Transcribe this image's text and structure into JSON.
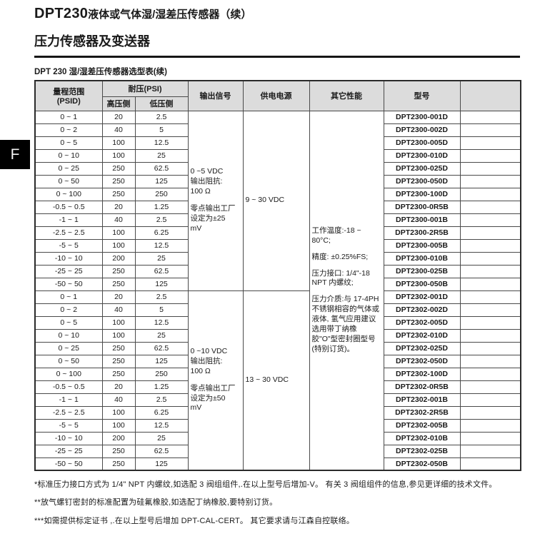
{
  "page": {
    "title_model": "DPT230",
    "title_rest": "液体或气体湿/湿差压传感器（续）",
    "subtitle": "压力传感器及变送器",
    "section_tab": "F",
    "table_caption": "DPT 230 湿/湿差压传感器选型表(续)"
  },
  "colors": {
    "header_bg": "#dcdcdc",
    "tab_bg": "#000000",
    "border": "#4a4a4a"
  },
  "table": {
    "headers": {
      "range": "量程范围",
      "range_sub": "(PSID)",
      "pressure": "耐压(PSI)",
      "high_side": "高压侧",
      "low_side": "低压侧",
      "output": "输出信号",
      "power": "供电电源",
      "other": "其它性能",
      "model": "型号",
      "blank": ""
    },
    "other_performance": [
      "工作温度:-18 ~ 80°C;",
      "精度: ±0.25%FS;",
      "压力接口: 1/4\"-18 NPT 内螺纹;",
      "压力介质:与 17-4PH 不锈钢相容的气体或液体, 氢气应用建议选用带丁纳橡胶\"O\"型密封圈型号(特别订货)。"
    ],
    "blocks": [
      {
        "output_signal": [
          "0 ~5 VDC\n输出阻抗:\n100 Ω",
          "零点输出工厂\n设定为±25\nmV"
        ],
        "power": "9 ~ 30 VDC",
        "rows": [
          {
            "range": "0 ~ 1",
            "high": "20",
            "low": "2.5",
            "model": "DPT2300-001D"
          },
          {
            "range": "0 ~ 2",
            "high": "40",
            "low": "5",
            "model": "DPT2300-002D"
          },
          {
            "range": "0 ~ 5",
            "high": "100",
            "low": "12.5",
            "model": "DPT2300-005D"
          },
          {
            "range": "0 ~ 10",
            "high": "100",
            "low": "25",
            "model": "DPT2300-010D"
          },
          {
            "range": "0 ~ 25",
            "high": "250",
            "low": "62.5",
            "model": "DPT2300-025D"
          },
          {
            "range": "0 ~ 50",
            "high": "250",
            "low": "125",
            "model": "DPT2300-050D"
          },
          {
            "range": "0 ~ 100",
            "high": "250",
            "low": "250",
            "model": "DPT2300-100D"
          },
          {
            "range": "-0.5 ~ 0.5",
            "high": "20",
            "low": "1.25",
            "model": "DPT2300-0R5B"
          },
          {
            "range": "-1 ~ 1",
            "high": "40",
            "low": "2.5",
            "model": "DPT2300-001B"
          },
          {
            "range": "-2.5 ~ 2.5",
            "high": "100",
            "low": "6.25",
            "model": "DPT2300-2R5B"
          },
          {
            "range": "-5 ~ 5",
            "high": "100",
            "low": "12.5",
            "model": "DPT2300-005B"
          },
          {
            "range": "-10 ~ 10",
            "high": "200",
            "low": "25",
            "model": "DPT2300-010B"
          },
          {
            "range": "-25 ~ 25",
            "high": "250",
            "low": "62.5",
            "model": "DPT2300-025B"
          },
          {
            "range": "-50 ~ 50",
            "high": "250",
            "low": "125",
            "model": "DPT2300-050B"
          }
        ]
      },
      {
        "output_signal": [
          "0 ~10 VDC\n输出阻抗:\n100 Ω",
          "零点输出工厂\n设定为±50\nmV"
        ],
        "power": "13 ~ 30 VDC",
        "rows": [
          {
            "range": "0 ~ 1",
            "high": "20",
            "low": "2.5",
            "model": "DPT2302-001D"
          },
          {
            "range": "0 ~ 2",
            "high": "40",
            "low": "5",
            "model": "DPT2302-002D"
          },
          {
            "range": "0 ~ 5",
            "high": "100",
            "low": "12.5",
            "model": "DPT2302-005D"
          },
          {
            "range": "0 ~ 10",
            "high": "100",
            "low": "25",
            "model": "DPT2302-010D"
          },
          {
            "range": "0 ~ 25",
            "high": "250",
            "low": "62.5",
            "model": "DPT2302-025D"
          },
          {
            "range": "0 ~ 50",
            "high": "250",
            "low": "125",
            "model": "DPT2302-050D"
          },
          {
            "range": "0 ~ 100",
            "high": "250",
            "low": "250",
            "model": "DPT2302-100D"
          },
          {
            "range": "-0.5 ~ 0.5",
            "high": "20",
            "low": "1.25",
            "model": "DPT2302-0R5B"
          },
          {
            "range": "-1 ~ 1",
            "high": "40",
            "low": "2.5",
            "model": "DPT2302-001B"
          },
          {
            "range": "-2.5 ~ 2.5",
            "high": "100",
            "low": "6.25",
            "model": "DPT2302-2R5B"
          },
          {
            "range": "-5 ~ 5",
            "high": "100",
            "low": "12.5",
            "model": "DPT2302-005B"
          },
          {
            "range": "-10 ~ 10",
            "high": "200",
            "low": "25",
            "model": "DPT2302-010B"
          },
          {
            "range": "-25 ~ 25",
            "high": "250",
            "low": "62.5",
            "model": "DPT2302-025B"
          },
          {
            "range": "-50 ~ 50",
            "high": "250",
            "low": "125",
            "model": "DPT2302-050B"
          }
        ]
      }
    ]
  },
  "footnotes": [
    "*标准压力接口方式为 1/4\" NPT 内螺纹,如选配 3 阀组组件,.在以上型号后增加-V。 有关 3 阀组组件的信息,参见更详细的技术文件。",
    "**放气螺钉密封的标准配置为硅氟橡胶,如选配丁纳橡胶,要特别订货。",
    "***如需提供标定证书 ,.在以上型号后增加 DPT-CAL-CERT。 其它要求请与江森自控联络。"
  ]
}
